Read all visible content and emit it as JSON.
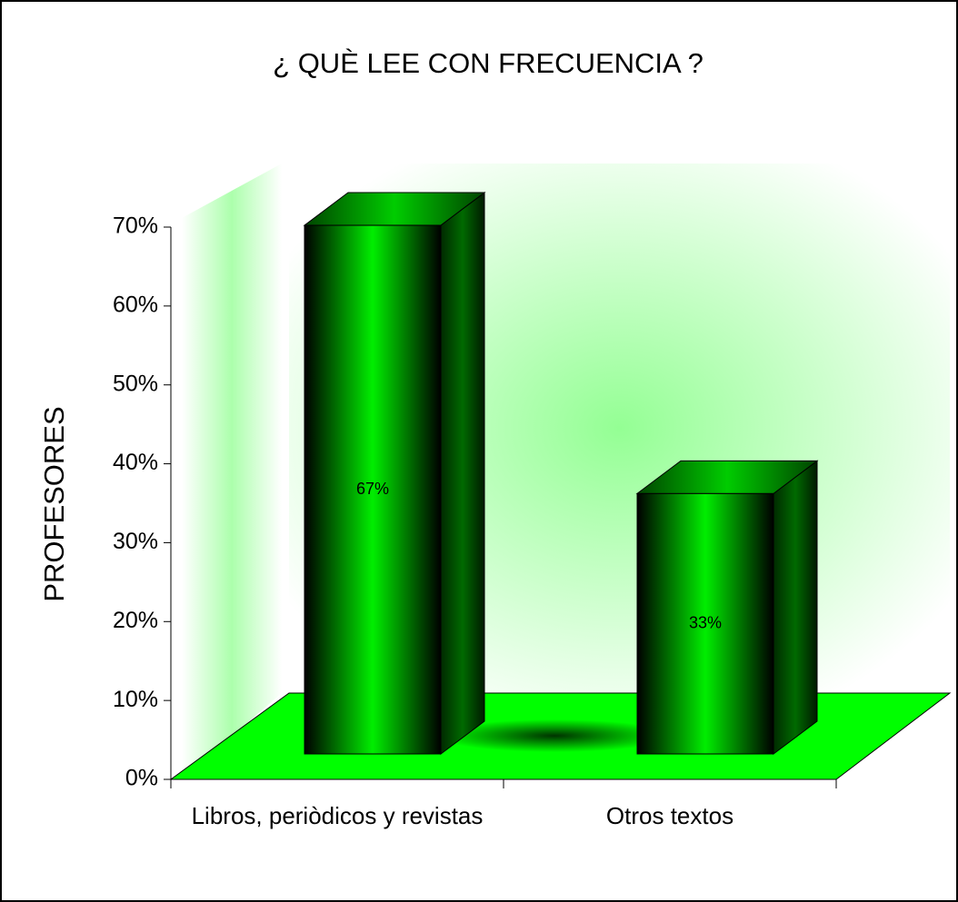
{
  "chart_data": {
    "type": "bar3d",
    "title": "¿ QUÈ LEE CON FRECUENCIA ?",
    "ylabel": "PROFESORES",
    "categories": [
      "Libros, periòdicos y revistas",
      "Otros textos"
    ],
    "values": [
      67,
      33
    ],
    "value_labels": [
      "67%",
      "33%"
    ],
    "color": "#00ff00",
    "ylim": [
      0,
      70
    ],
    "yticks": [
      {
        "value": 0,
        "label": "0%"
      },
      {
        "value": 10,
        "label": "10%"
      },
      {
        "value": 20,
        "label": "20%"
      },
      {
        "value": 30,
        "label": "30%"
      },
      {
        "value": 40,
        "label": "40%"
      },
      {
        "value": 50,
        "label": "50%"
      },
      {
        "value": 60,
        "label": "60%"
      },
      {
        "value": 70,
        "label": "70%"
      }
    ]
  }
}
